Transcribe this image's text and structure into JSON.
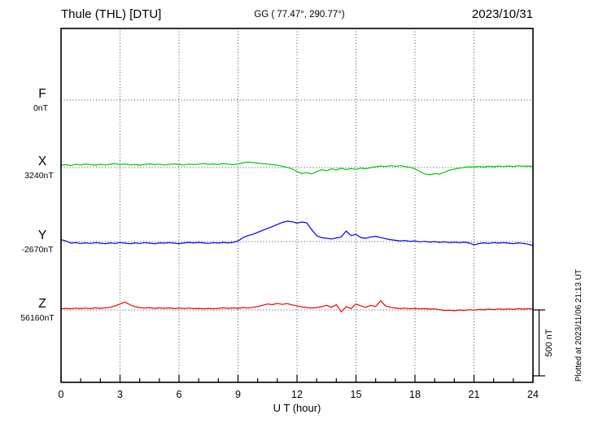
{
  "header": {
    "title": "Thule (THL)  [DTU]",
    "coords": "GG ( 77.47°, 290.77°)",
    "date": "2023/10/31"
  },
  "chart_data": {
    "type": "line",
    "title": "Thule (THL) magnetogram 2023/10/31",
    "xlabel": "U T (hour)",
    "x_range": [
      0,
      24
    ],
    "x_ticks": [
      "0",
      "3",
      "6",
      "9",
      "12",
      "15",
      "18",
      "21",
      "24"
    ],
    "time_step_hours": 0.25,
    "grid": "dotted vertical every 3 h, dotted horizontal baseline per channel",
    "plotted_at": "Plotted at 2023/11/06 21:13 UT",
    "scale_bar": {
      "label": "500 nT",
      "nT": 500
    },
    "series": [
      {
        "name": "F",
        "unit_label": "0nT",
        "baseline": 0,
        "color": "#FFA500",
        "values": []
      },
      {
        "name": "X",
        "unit_label": "3240nT",
        "baseline": 3240,
        "color": "#00C800",
        "values": [
          3258,
          3262,
          3255,
          3265,
          3260,
          3268,
          3262,
          3258,
          3265,
          3260,
          3265,
          3270,
          3262,
          3268,
          3260,
          3264,
          3258,
          3264,
          3268,
          3262,
          3266,
          3260,
          3264,
          3268,
          3264,
          3260,
          3266,
          3262,
          3266,
          3270,
          3264,
          3268,
          3264,
          3270,
          3266,
          3262,
          3268,
          3276,
          3282,
          3278,
          3274,
          3270,
          3266,
          3262,
          3258,
          3250,
          3242,
          3230,
          3210,
          3195,
          3202,
          3192,
          3210,
          3225,
          3215,
          3230,
          3222,
          3235,
          3225,
          3232,
          3226,
          3236,
          3230,
          3240,
          3246,
          3252,
          3248,
          3254,
          3250,
          3254,
          3248,
          3242,
          3230,
          3210,
          3192,
          3185,
          3195,
          3190,
          3205,
          3220,
          3228,
          3235,
          3242,
          3246,
          3244,
          3248,
          3244,
          3250,
          3246,
          3252,
          3248,
          3252,
          3248,
          3254,
          3250,
          3252,
          3248
        ]
      },
      {
        "name": "Y",
        "unit_label": "-2670nT",
        "baseline": -2670,
        "color": "#0000F0",
        "values": [
          -2655,
          -2665,
          -2682,
          -2678,
          -2684,
          -2680,
          -2684,
          -2678,
          -2682,
          -2686,
          -2680,
          -2684,
          -2678,
          -2682,
          -2686,
          -2680,
          -2684,
          -2678,
          -2682,
          -2686,
          -2680,
          -2682,
          -2678,
          -2682,
          -2686,
          -2680,
          -2676,
          -2680,
          -2676,
          -2680,
          -2684,
          -2678,
          -2682,
          -2676,
          -2680,
          -2676,
          -2665,
          -2640,
          -2625,
          -2615,
          -2600,
          -2585,
          -2570,
          -2555,
          -2540,
          -2525,
          -2515,
          -2520,
          -2530,
          -2522,
          -2528,
          -2580,
          -2625,
          -2640,
          -2645,
          -2650,
          -2642,
          -2635,
          -2590,
          -2625,
          -2615,
          -2640,
          -2645,
          -2635,
          -2630,
          -2640,
          -2648,
          -2655,
          -2660,
          -2665,
          -2662,
          -2668,
          -2665,
          -2672,
          -2668,
          -2674,
          -2670,
          -2676,
          -2672,
          -2678,
          -2674,
          -2678,
          -2674,
          -2680,
          -2695,
          -2685,
          -2680,
          -2684,
          -2678,
          -2682,
          -2678,
          -2682,
          -2686,
          -2680,
          -2684,
          -2690,
          -2700
        ]
      },
      {
        "name": "Z",
        "unit_label": "56160nT",
        "baseline": 56160,
        "color": "#F00000",
        "values": [
          56168,
          56172,
          56168,
          56174,
          56170,
          56174,
          56170,
          56176,
          56172,
          56176,
          56180,
          56190,
          56205,
          56220,
          56200,
          56185,
          56178,
          56174,
          56178,
          56172,
          56176,
          56172,
          56176,
          56170,
          56174,
          56170,
          56174,
          56170,
          56172,
          56168,
          56172,
          56168,
          56172,
          56176,
          56172,
          56176,
          56172,
          56178,
          56174,
          56180,
          56185,
          56195,
          56205,
          56200,
          56210,
          56202,
          56208,
          56198,
          56190,
          56182,
          56178,
          56174,
          56178,
          56184,
          56195,
          56180,
          56200,
          56145,
          56185,
          56170,
          56205,
          56190,
          56180,
          56195,
          56185,
          56230,
          56190,
          56180,
          56175,
          56170,
          56174,
          56168,
          56172,
          56168,
          56170,
          56166,
          56168,
          56162,
          56156,
          56158,
          56154,
          56160,
          56156,
          56162,
          56158,
          56164,
          56160,
          56166,
          56162,
          56168,
          56164,
          56168,
          56164,
          56170,
          56166,
          56170,
          56166
        ]
      }
    ]
  }
}
